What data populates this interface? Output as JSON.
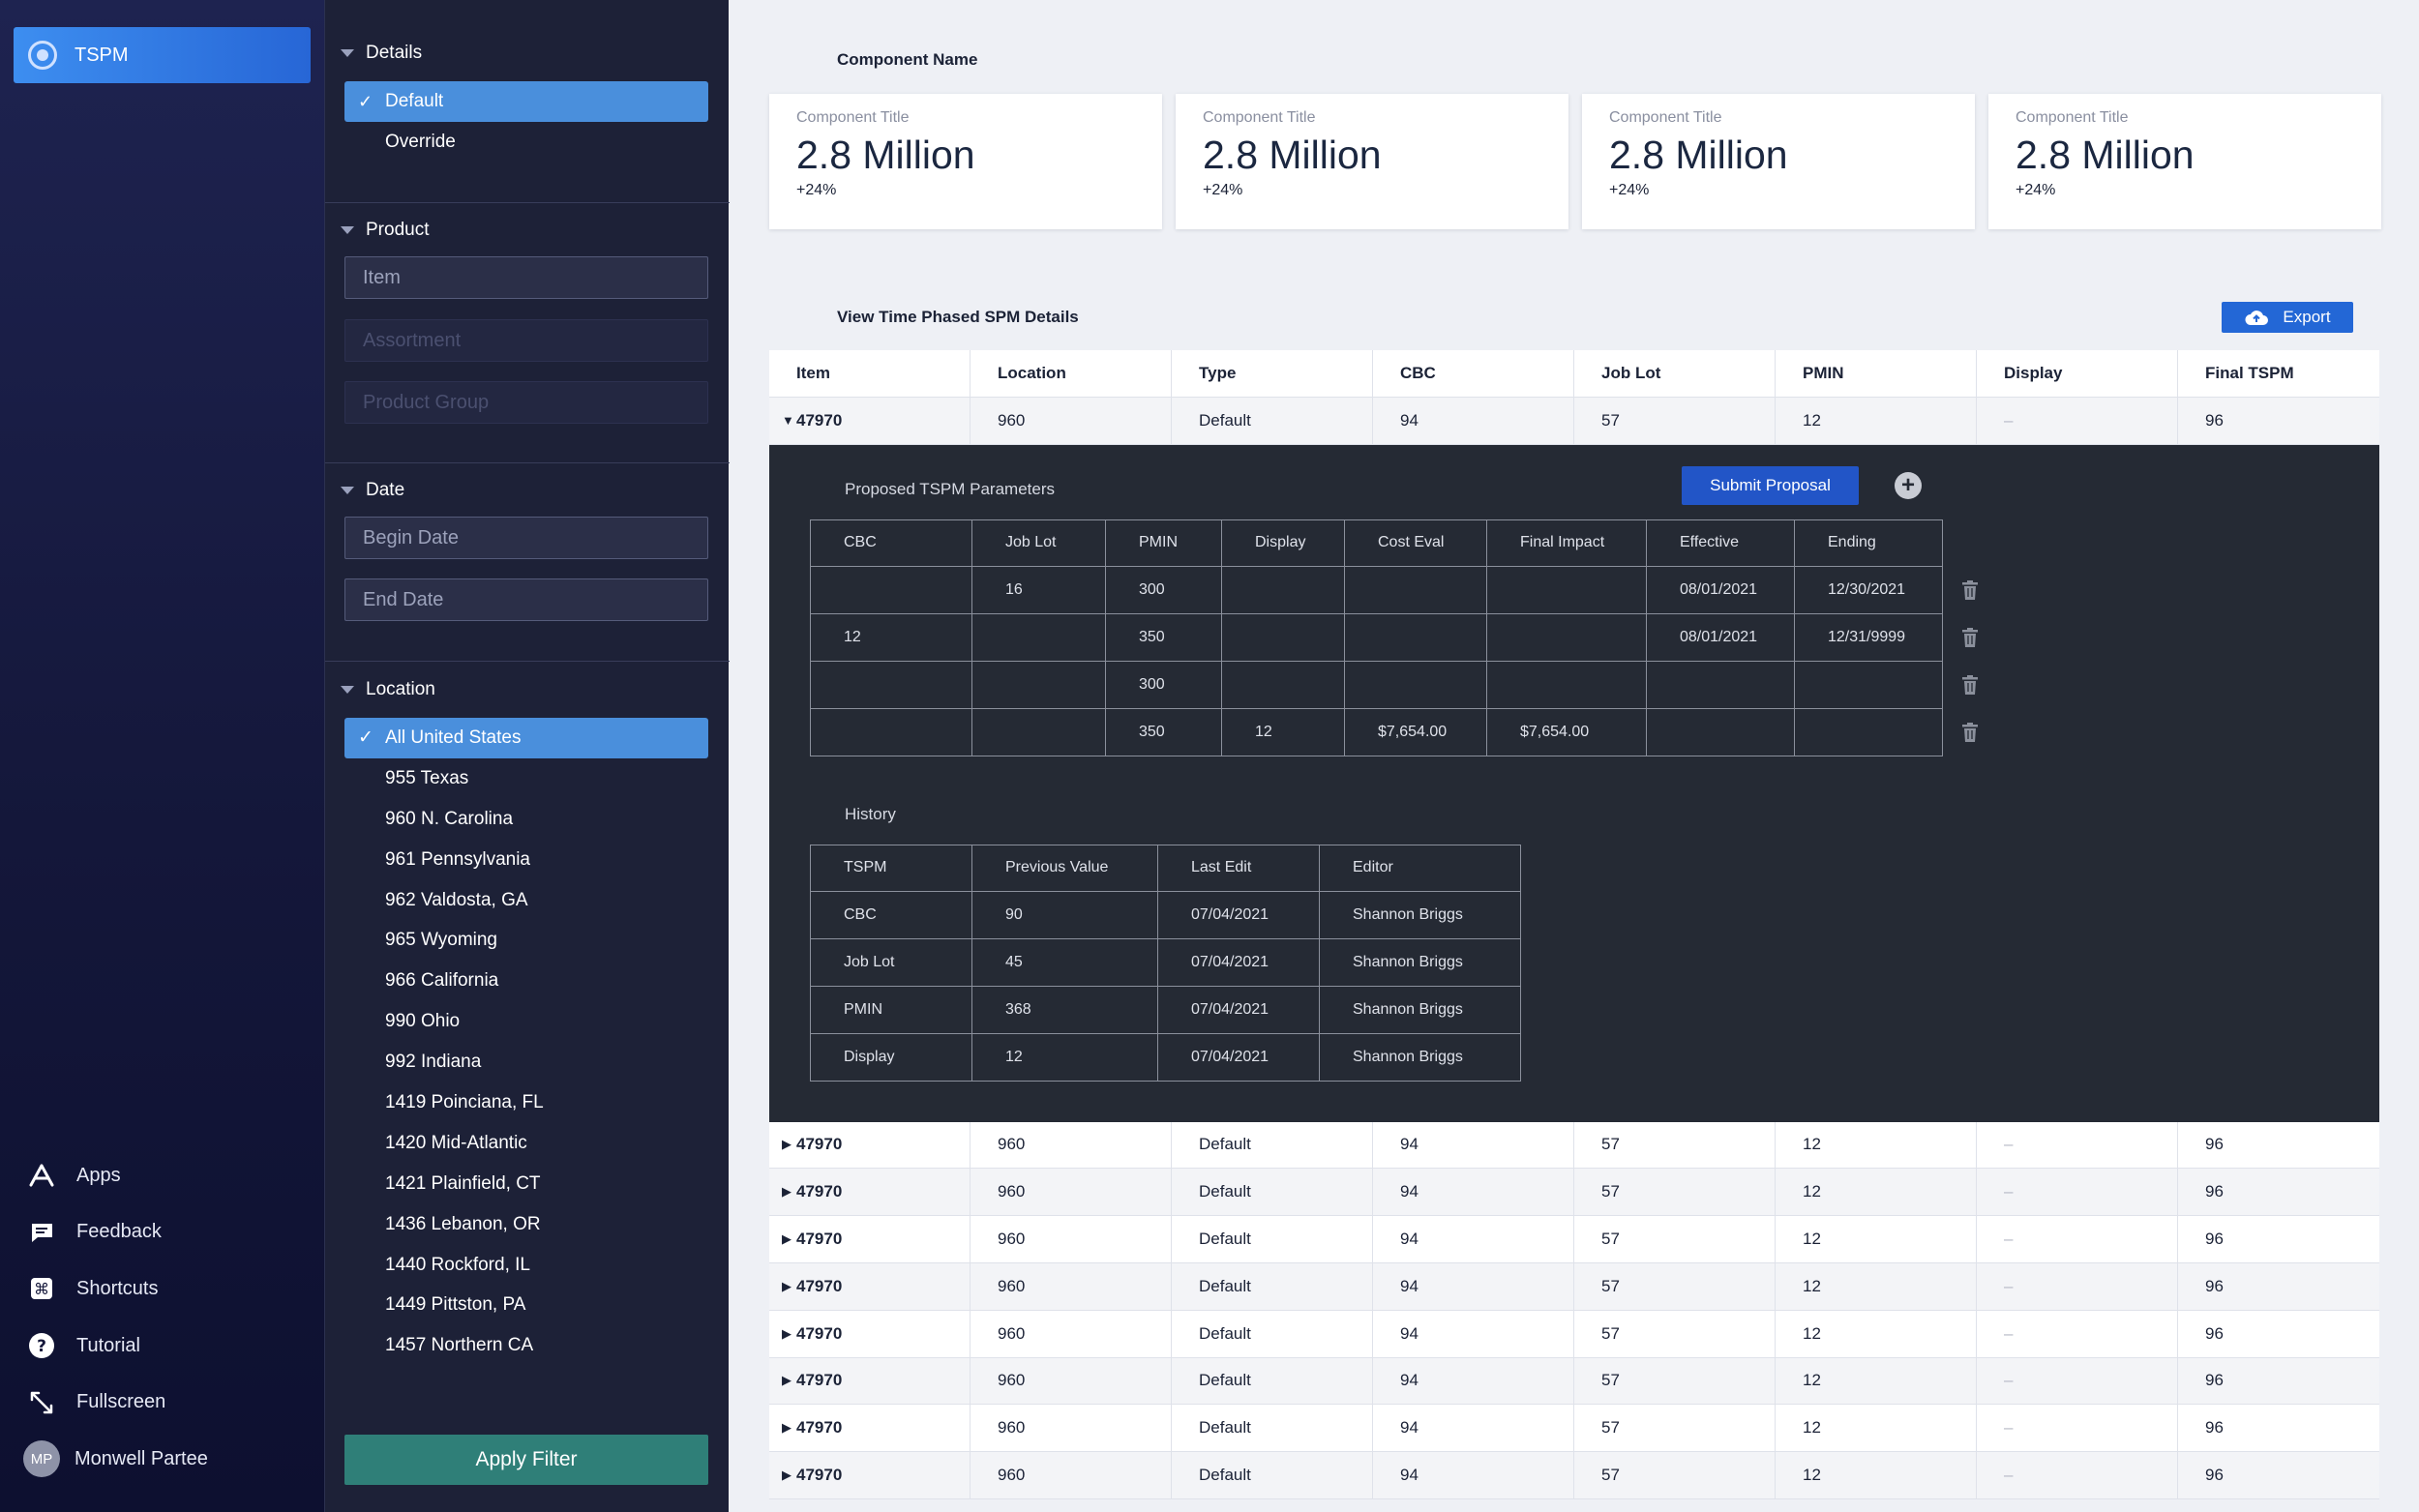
{
  "nav": {
    "app_name": "TSPM",
    "links": [
      {
        "label": "Apps",
        "icon": "apps-icon"
      },
      {
        "label": "Feedback",
        "icon": "feedback-icon"
      },
      {
        "label": "Shortcuts",
        "icon": "shortcuts-icon"
      },
      {
        "label": "Tutorial",
        "icon": "tutorial-icon"
      },
      {
        "label": "Fullscreen",
        "icon": "fullscreen-icon"
      }
    ],
    "user": {
      "initials": "MP",
      "name": "Monwell Partee"
    }
  },
  "filters": {
    "details": {
      "title": "Details",
      "options": [
        "Default",
        "Override"
      ],
      "selected": "Default"
    },
    "product": {
      "title": "Product",
      "item_placeholder": "Item",
      "assortment_placeholder": "Assortment",
      "group_placeholder": "Product Group"
    },
    "date": {
      "title": "Date",
      "begin_placeholder": "Begin Date",
      "end_placeholder": "End Date"
    },
    "location": {
      "title": "Location",
      "items": [
        "All United States",
        "955 Texas",
        "960 N. Carolina",
        "961 Pennsylvania",
        "962 Valdosta, GA",
        "965 Wyoming",
        "966 California",
        "990 Ohio",
        "992 Indiana",
        "1419 Poinciana, FL",
        "1420 Mid-Atlantic",
        "1421 Plainfield, CT",
        "1436 Lebanon, OR",
        "1440 Rockford, IL",
        "1449 Pittston, PA",
        "1457 Northern CA"
      ],
      "selected": "All United States"
    },
    "apply_label": "Apply Filter"
  },
  "main": {
    "component_name": "Component Name",
    "cards": [
      {
        "title": "Component Title",
        "value": "2.8 Million",
        "delta": "+24%"
      },
      {
        "title": "Component Title",
        "value": "2.8 Million",
        "delta": "+24%"
      },
      {
        "title": "Component Title",
        "value": "2.8 Million",
        "delta": "+24%"
      },
      {
        "title": "Component Title",
        "value": "2.8 Million",
        "delta": "+24%"
      }
    ],
    "section_title": "View Time Phased SPM Details",
    "export_label": "Export",
    "columns": [
      "Item",
      "Location",
      "Type",
      "CBC",
      "Job Lot",
      "PMIN",
      "Display",
      "Final TSPM"
    ],
    "rows": [
      {
        "item": "47970",
        "location": "960",
        "type": "Default",
        "cbc": "94",
        "job_lot": "57",
        "pmin": "12",
        "display": "–",
        "final": "96"
      },
      {
        "item": "47970",
        "location": "960",
        "type": "Default",
        "cbc": "94",
        "job_lot": "57",
        "pmin": "12",
        "display": "–",
        "final": "96"
      },
      {
        "item": "47970",
        "location": "960",
        "type": "Default",
        "cbc": "94",
        "job_lot": "57",
        "pmin": "12",
        "display": "–",
        "final": "96"
      },
      {
        "item": "47970",
        "location": "960",
        "type": "Default",
        "cbc": "94",
        "job_lot": "57",
        "pmin": "12",
        "display": "–",
        "final": "96"
      },
      {
        "item": "47970",
        "location": "960",
        "type": "Default",
        "cbc": "94",
        "job_lot": "57",
        "pmin": "12",
        "display": "–",
        "final": "96"
      },
      {
        "item": "47970",
        "location": "960",
        "type": "Default",
        "cbc": "94",
        "job_lot": "57",
        "pmin": "12",
        "display": "–",
        "final": "96"
      },
      {
        "item": "47970",
        "location": "960",
        "type": "Default",
        "cbc": "94",
        "job_lot": "57",
        "pmin": "12",
        "display": "–",
        "final": "96"
      },
      {
        "item": "47970",
        "location": "960",
        "type": "Default",
        "cbc": "94",
        "job_lot": "57",
        "pmin": "12",
        "display": "–",
        "final": "96"
      },
      {
        "item": "47970",
        "location": "960",
        "type": "Default",
        "cbc": "94",
        "job_lot": "57",
        "pmin": "12",
        "display": "–",
        "final": "96"
      }
    ],
    "expanded": {
      "proposed_title": "Proposed TSPM Parameters",
      "submit_label": "Submit Proposal",
      "proposed_columns": [
        "CBC",
        "Job Lot",
        "PMIN",
        "Display",
        "Cost Eval",
        "Final Impact",
        "Effective",
        "Ending"
      ],
      "proposed_rows": [
        [
          "",
          "16",
          "300",
          "",
          "",
          "",
          "08/01/2021",
          "12/30/2021"
        ],
        [
          "12",
          "",
          "350",
          "",
          "",
          "",
          "08/01/2021",
          "12/31/9999"
        ],
        [
          "",
          "",
          "300",
          "",
          "",
          "",
          "",
          ""
        ],
        [
          "",
          "",
          "350",
          "12",
          "$7,654.00",
          "$7,654.00",
          "",
          ""
        ]
      ],
      "history_title": "History",
      "history_columns": [
        "TSPM",
        "Previous Value",
        "Last Edit",
        "Editor"
      ],
      "history_rows": [
        [
          "CBC",
          "90",
          "07/04/2021",
          "Shannon Briggs"
        ],
        [
          "Job Lot",
          "45",
          "07/04/2021",
          "Shannon Briggs"
        ],
        [
          "PMIN",
          "368",
          "07/04/2021",
          "Shannon Briggs"
        ],
        [
          "Display",
          "12",
          "07/04/2021",
          "Shannon Briggs"
        ]
      ]
    }
  },
  "colors": {
    "accent": "#2367d6",
    "selected": "#4a8fdc",
    "apply": "#2f7f78",
    "nav_bg": "#14173a",
    "panel_bg": "#1d2137",
    "detail_bg": "#252a34"
  }
}
